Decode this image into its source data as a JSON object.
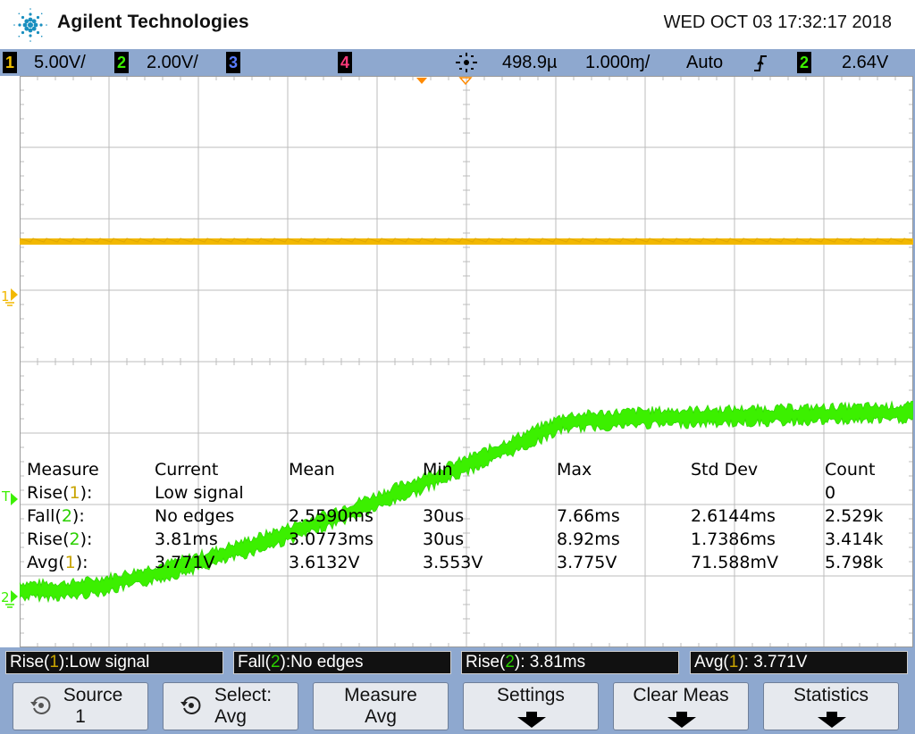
{
  "header": {
    "brand": "Agilent Technologies",
    "datetime": "WED OCT 03 17:32:17 2018"
  },
  "status_bar": {
    "ch1": {
      "num": "1",
      "scale": "5.00V/",
      "color": "#f2c200"
    },
    "ch2": {
      "num": "2",
      "scale": "2.00V/",
      "color": "#3cf000"
    },
    "ch3": {
      "num": "3",
      "color": "#5a7dff"
    },
    "ch4": {
      "num": "4",
      "color": "#ff3a7a"
    },
    "delay": "498.9µ",
    "timebase": "1.000ɱ/",
    "trigger_mode": "Auto",
    "trigger_source": "2",
    "trigger_level": "2.64V"
  },
  "markers": {
    "ch1_ground": "1",
    "trigger": "T",
    "ch2_ground": "2"
  },
  "measurements": {
    "headers": [
      "Measure",
      "Current",
      "Mean",
      "Min",
      "Max",
      "Std Dev",
      "Count"
    ],
    "rows": [
      {
        "name": "Rise(",
        "ch": "1",
        "close": "):",
        "chcolor": "y",
        "current": "Low signal",
        "mean": "",
        "min": "",
        "max": "",
        "std": "",
        "count": "0"
      },
      {
        "name": "Fall(",
        "ch": "2",
        "close": "):",
        "chcolor": "g",
        "current": "No edges",
        "mean": "2.5590ms",
        "min": "30us",
        "max": "7.66ms",
        "std": "2.6144ms",
        "count": "2.529k"
      },
      {
        "name": "Rise(",
        "ch": "2",
        "close": "):",
        "chcolor": "g",
        "current": "3.81ms",
        "mean": "3.0773ms",
        "min": "30us",
        "max": "8.92ms",
        "std": "1.7386ms",
        "count": "3.414k"
      },
      {
        "name": "Avg(",
        "ch": "1",
        "close": "):",
        "chcolor": "y",
        "current": "3.771V",
        "mean": "3.6132V",
        "min": "3.553V",
        "max": "3.775V",
        "std": "71.588mV",
        "count": "5.798k"
      }
    ]
  },
  "results": [
    {
      "pre": "Rise(",
      "ch": "1",
      "chcolor": "y",
      "post": "):Low signal"
    },
    {
      "pre": "Fall(",
      "ch": "2",
      "chcolor": "g",
      "post": "):No edges"
    },
    {
      "pre": "Rise(",
      "ch": "2",
      "chcolor": "g",
      "post": "): 3.81ms"
    },
    {
      "pre": "Avg(",
      "ch": "1",
      "chcolor": "y",
      "post": "): 3.771V"
    }
  ],
  "softkeys": [
    {
      "line1": "Source",
      "line2": "1",
      "icon": "rotary-knob-icon"
    },
    {
      "line1": "Select:",
      "line2": "Avg",
      "icon": "rotary-knob-icon"
    },
    {
      "line1": "Measure",
      "line2": "Avg"
    },
    {
      "line1": "Settings",
      "icon": "down-arrow-icon"
    },
    {
      "line1": "Clear Meas",
      "icon": "down-arrow-icon"
    },
    {
      "line1": "Statistics",
      "icon": "down-arrow-icon"
    }
  ],
  "colors": {
    "ch1_trace": "#f2b800",
    "ch2_trace": "#3cf000",
    "grid": "#bcbcbc",
    "bar": "#8ea8cf",
    "trigger_marker": "#ff8a00"
  }
}
